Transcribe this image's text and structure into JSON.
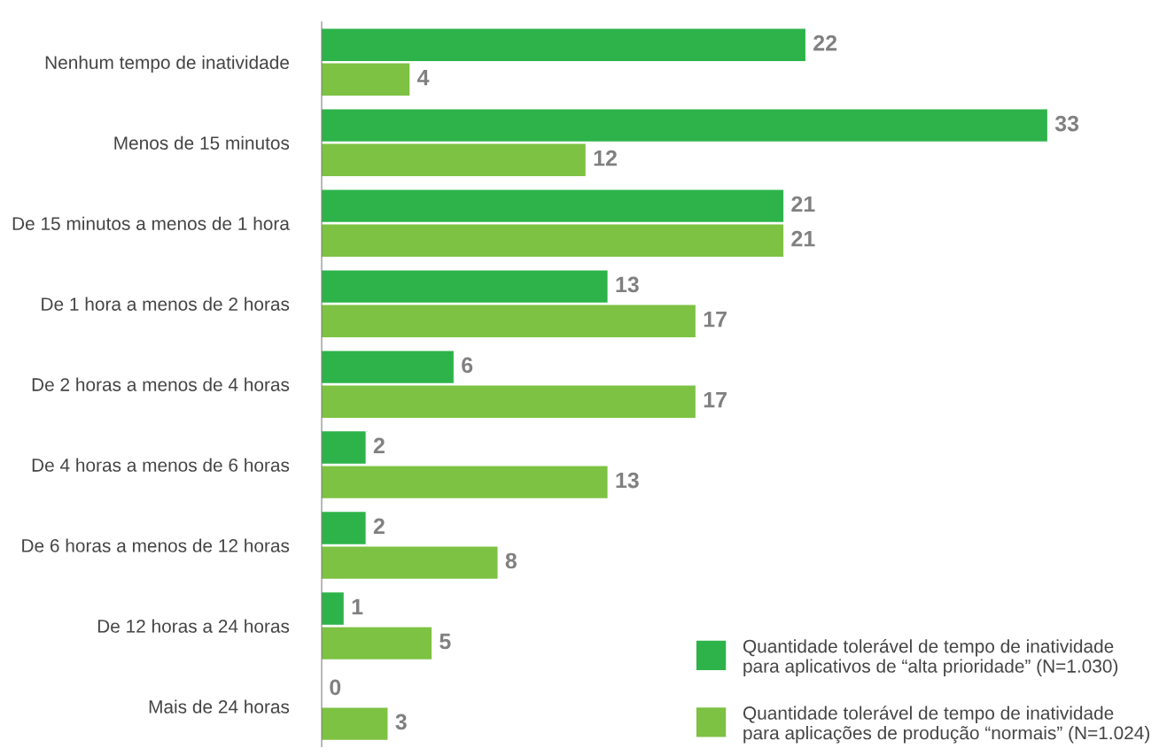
{
  "chart_data": {
    "type": "bar",
    "orientation": "horizontal",
    "data_labels": true,
    "legend": "bottom right",
    "grid": false,
    "categories": [
      "Nenhum tempo de inatividade",
      "Menos de 15 minutos",
      "De 15 minutos a menos de 1 hora",
      "De 1 hora a menos de 2 horas",
      "De 2 horas a menos de 4 horas",
      "De 4 horas a menos de 6 horas",
      "De 6 horas a menos de 12 horas",
      "De 12 horas a 24 horas",
      "Mais de 24 horas"
    ],
    "series": [
      {
        "name": "Quantidade tolerável de tempo de inatividade\npara aplicativos de “alta prioridade” (N=1.030)",
        "color": "#2db34a",
        "values": [
          22,
          33,
          21,
          13,
          6,
          2,
          2,
          1,
          0
        ]
      },
      {
        "name": "Quantidade tolerável de tempo de inatividade\npara aplicações de produção “normais” (N=1.024)",
        "color": "#7dc243",
        "values": [
          4,
          12,
          21,
          17,
          17,
          13,
          8,
          5,
          3
        ]
      }
    ]
  }
}
